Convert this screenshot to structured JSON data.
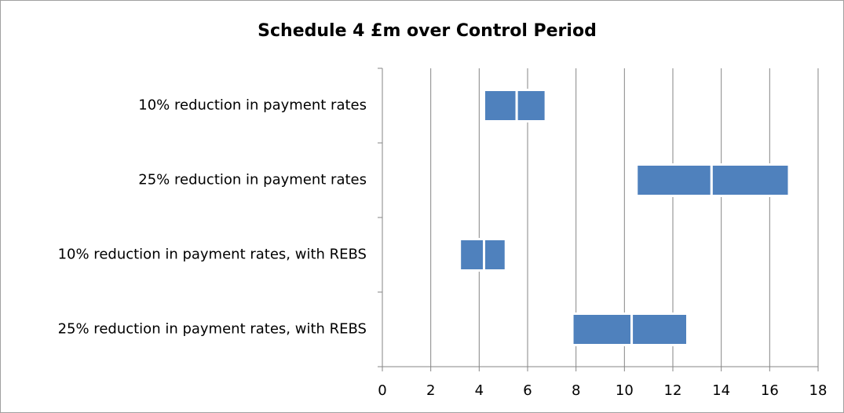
{
  "chart_data": {
    "type": "bar",
    "orientation": "horizontal",
    "stacked": true,
    "title": "Schedule 4  £m over Control Period",
    "categories": [
      "10% reduction in  payment rates",
      "25% reduction in  payment rates",
      "10% reduction in  payment rates, with REBS",
      "25% reduction in  payment rates, with REBS"
    ],
    "series": [
      {
        "color": "none",
        "values": [
          4.2,
          10.5,
          3.2,
          7.85
        ]
      },
      {
        "color": "#4f81bd",
        "values": [
          1.35,
          3.1,
          1.0,
          2.45
        ]
      },
      {
        "color": "#4f81bd",
        "values": [
          1.2,
          3.2,
          0.9,
          2.3
        ]
      }
    ],
    "xlim": [
      0,
      18
    ],
    "xticks": [
      0,
      2,
      4,
      6,
      8,
      10,
      12,
      14,
      16,
      18
    ],
    "grid": true
  }
}
